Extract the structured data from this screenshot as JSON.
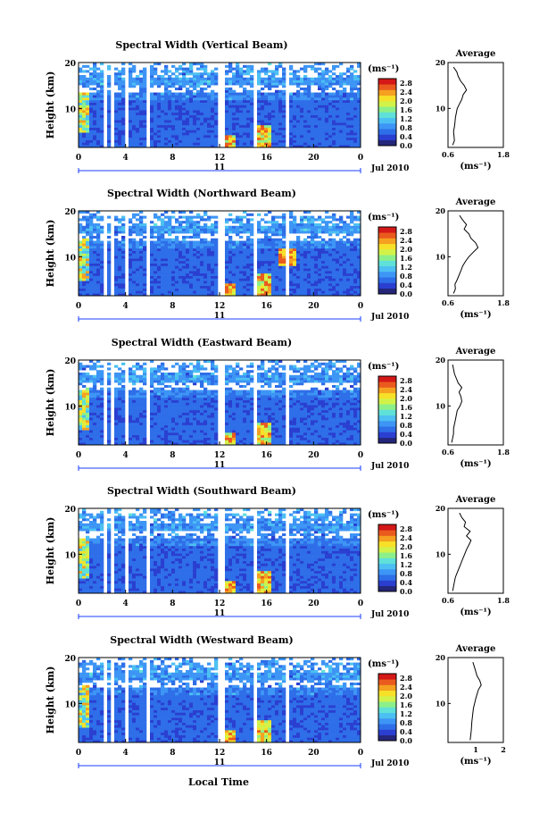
{
  "figure": {
    "date_label": "Jul 2010",
    "day_label": "11",
    "xlabel": "Local Time",
    "ylabel": "Height (km)",
    "colorbar_unit": "(ms⁻¹)",
    "profile_title": "Average",
    "profile_xlabel": "(ms⁻¹)",
    "colormap": [
      "#24267a",
      "#2a3fd0",
      "#2e6ee8",
      "#3d95f5",
      "#4cc0f2",
      "#5fe0d8",
      "#8cf08a",
      "#d2f24a",
      "#f7e028",
      "#f5a020",
      "#ea5a1e",
      "#d41818"
    ]
  },
  "chart_data": [
    {
      "type": "heatmap",
      "title": "Spectral Width (Vertical Beam)",
      "x_ticks": [
        "0",
        "4",
        "8",
        "12",
        "16",
        "20",
        "0"
      ],
      "y_ticks": [
        "10",
        "20"
      ],
      "xlim": [
        0,
        24
      ],
      "ylim": [
        1.5,
        20
      ],
      "colorbar": {
        "ticks": [
          "0.0",
          "0.4",
          "0.8",
          "1.2",
          "1.6",
          "2.0",
          "2.4",
          "2.8"
        ],
        "range": [
          0,
          3.0
        ]
      },
      "data_gaps_hours": [
        [
          2.0,
          2.3
        ],
        [
          2.7,
          2.9
        ],
        [
          4.1,
          4.4
        ],
        [
          5.7,
          6.0
        ],
        [
          12.0,
          12.35
        ],
        [
          14.8,
          15.15
        ],
        [
          17.6,
          17.9
        ]
      ],
      "profile": {
        "xlim": [
          0.6,
          1.8
        ],
        "x_ticks": [
          "0.6",
          "1.8"
        ],
        "y_ticks": [
          "10",
          "20"
        ],
        "heights": [
          2,
          3,
          4,
          5,
          6,
          7,
          8,
          9,
          10,
          11,
          12,
          13,
          14,
          15,
          16,
          17,
          18,
          19
        ],
        "values": [
          0.7,
          0.74,
          0.73,
          0.72,
          0.74,
          0.75,
          0.76,
          0.78,
          0.8,
          0.85,
          0.9,
          0.93,
          1.0,
          0.95,
          0.87,
          0.82,
          0.79,
          0.72
        ]
      }
    },
    {
      "type": "heatmap",
      "title": "Spectral Width (Northward Beam)",
      "x_ticks": [
        "0",
        "4",
        "8",
        "12",
        "16",
        "20",
        "0"
      ],
      "y_ticks": [
        "10",
        "20"
      ],
      "xlim": [
        0,
        24
      ],
      "ylim": [
        1.5,
        20
      ],
      "colorbar": {
        "ticks": [
          "0.0",
          "0.4",
          "0.8",
          "1.2",
          "1.6",
          "2.0",
          "2.4",
          "2.8"
        ],
        "range": [
          0,
          3.0
        ]
      },
      "data_gaps_hours": [
        [
          2.0,
          2.3
        ],
        [
          2.7,
          2.9
        ],
        [
          4.1,
          4.4
        ],
        [
          5.7,
          6.0
        ],
        [
          12.0,
          12.35
        ],
        [
          14.8,
          15.15
        ],
        [
          17.6,
          17.9
        ]
      ],
      "profile": {
        "xlim": [
          0.6,
          1.8
        ],
        "x_ticks": [
          "0.6",
          "1.8"
        ],
        "y_ticks": [
          "10",
          "20"
        ],
        "heights": [
          2,
          3,
          4,
          5,
          6,
          7,
          8,
          9,
          10,
          11,
          12,
          13,
          14,
          15,
          16,
          17,
          18,
          19
        ],
        "values": [
          0.72,
          0.76,
          0.75,
          0.8,
          0.84,
          0.88,
          0.92,
          0.98,
          1.05,
          1.15,
          1.25,
          1.2,
          1.1,
          1.05,
          0.95,
          1.0,
          0.92,
          0.85
        ]
      }
    },
    {
      "type": "heatmap",
      "title": "Spectral Width (Eastward Beam)",
      "x_ticks": [
        "0",
        "4",
        "8",
        "12",
        "16",
        "20",
        "0"
      ],
      "y_ticks": [
        "10",
        "20"
      ],
      "xlim": [
        0,
        24
      ],
      "ylim": [
        1.5,
        20
      ],
      "colorbar": {
        "ticks": [
          "0.0",
          "0.4",
          "0.8",
          "1.2",
          "1.6",
          "2.0",
          "2.4",
          "2.8"
        ],
        "range": [
          0,
          3.0
        ]
      },
      "data_gaps_hours": [
        [
          2.0,
          2.3
        ],
        [
          2.7,
          2.9
        ],
        [
          4.1,
          4.4
        ],
        [
          5.7,
          6.0
        ],
        [
          12.0,
          12.35
        ],
        [
          14.8,
          15.15
        ],
        [
          17.6,
          17.9
        ]
      ],
      "profile": {
        "xlim": [
          0.6,
          1.8
        ],
        "x_ticks": [
          "0.6",
          "1.8"
        ],
        "y_ticks": [
          "10",
          "20"
        ],
        "heights": [
          2,
          3,
          4,
          5,
          6,
          7,
          8,
          9,
          10,
          11,
          12,
          13,
          14,
          15,
          16,
          17,
          18,
          19
        ],
        "values": [
          0.68,
          0.7,
          0.72,
          0.72,
          0.74,
          0.76,
          0.78,
          0.8,
          0.86,
          0.9,
          0.88,
          0.84,
          0.9,
          0.82,
          0.78,
          0.74,
          0.72,
          0.7
        ]
      }
    },
    {
      "type": "heatmap",
      "title": "Spectral Width (Southward Beam)",
      "x_ticks": [
        "0",
        "4",
        "8",
        "12",
        "16",
        "20",
        "0"
      ],
      "y_ticks": [
        "10",
        "20"
      ],
      "xlim": [
        0,
        24
      ],
      "ylim": [
        1.5,
        20
      ],
      "colorbar": {
        "ticks": [
          "0.0",
          "0.4",
          "0.8",
          "1.2",
          "1.6",
          "2.0",
          "2.4",
          "2.8"
        ],
        "range": [
          0,
          3.0
        ]
      },
      "data_gaps_hours": [
        [
          2.0,
          2.3
        ],
        [
          2.7,
          2.9
        ],
        [
          4.1,
          4.4
        ],
        [
          5.7,
          6.0
        ],
        [
          12.0,
          12.35
        ],
        [
          14.8,
          15.15
        ],
        [
          17.6,
          17.9
        ]
      ],
      "profile": {
        "xlim": [
          0.6,
          1.8
        ],
        "x_ticks": [
          "0.6",
          "1.8"
        ],
        "y_ticks": [
          "10",
          "20"
        ],
        "heights": [
          2,
          3,
          4,
          5,
          6,
          7,
          8,
          9,
          10,
          11,
          12,
          13,
          14,
          15,
          16,
          17,
          18,
          19
        ],
        "values": [
          0.7,
          0.72,
          0.74,
          0.76,
          0.8,
          0.84,
          0.88,
          0.92,
          0.96,
          1.0,
          1.05,
          1.1,
          1.0,
          1.08,
          0.95,
          0.98,
          0.9,
          0.85
        ]
      }
    },
    {
      "type": "heatmap",
      "title": "Spectral Width (Westward Beam)",
      "x_ticks": [
        "0",
        "4",
        "8",
        "12",
        "16",
        "20",
        "0"
      ],
      "y_ticks": [
        "10",
        "20"
      ],
      "xlim": [
        0,
        24
      ],
      "ylim": [
        1.5,
        20
      ],
      "colorbar": {
        "ticks": [
          "0.0",
          "0.4",
          "0.8",
          "1.2",
          "1.6",
          "2.0",
          "2.4",
          "2.8"
        ],
        "range": [
          0,
          3.0
        ]
      },
      "data_gaps_hours": [
        [
          2.0,
          2.3
        ],
        [
          2.7,
          2.9
        ],
        [
          4.1,
          4.4
        ],
        [
          5.7,
          6.0
        ],
        [
          12.0,
          12.35
        ],
        [
          14.8,
          15.15
        ],
        [
          17.6,
          17.9
        ]
      ],
      "profile": {
        "xlim": [
          0,
          2
        ],
        "x_ticks": [
          "1",
          "2"
        ],
        "y_ticks": [
          "10",
          "20"
        ],
        "heights": [
          2,
          3,
          4,
          5,
          6,
          7,
          8,
          9,
          10,
          11,
          12,
          13,
          14,
          15,
          16,
          17,
          18,
          19
        ],
        "values": [
          0.8,
          0.82,
          0.84,
          0.85,
          0.86,
          0.88,
          0.9,
          0.92,
          0.96,
          1.0,
          1.05,
          1.1,
          1.2,
          1.15,
          1.05,
          1.0,
          0.95,
          0.9
        ]
      }
    }
  ]
}
